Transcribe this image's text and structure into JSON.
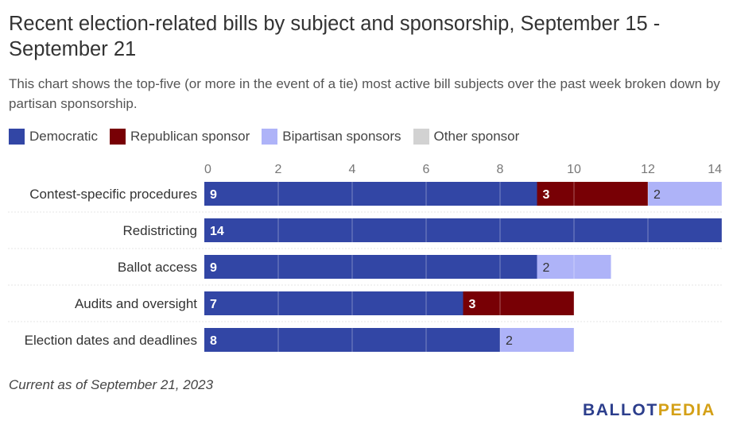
{
  "title": "Recent election-related bills by subject and sponsorship, September 15 - September 21",
  "subtitle": "This chart shows the top-five (or more in the event of a tie) most active bill subjects over the past week broken down by partisan sponsorship.",
  "footnote": "Current as of September 21, 2023",
  "logo": {
    "part1": "BALLOT",
    "part2": "PEDIA"
  },
  "chart_data": {
    "type": "bar",
    "orientation": "horizontal",
    "stacked": true,
    "categories": [
      "Contest-specific procedures",
      "Redistricting",
      "Ballot access",
      "Audits and oversight",
      "Election dates and deadlines"
    ],
    "series": [
      {
        "name": "Democratic",
        "color": "#3246a5",
        "values": [
          9,
          14,
          9,
          7,
          8
        ]
      },
      {
        "name": "Republican sponsor",
        "color": "#780005",
        "values": [
          3,
          0,
          0,
          3,
          0
        ]
      },
      {
        "name": "Bipartisan sponsors",
        "color": "#aeb3f8",
        "values": [
          2,
          0,
          2,
          0,
          2
        ]
      },
      {
        "name": "Other sponsor",
        "color": "#d2d2d2",
        "values": [
          0,
          0,
          0,
          0,
          0
        ]
      }
    ],
    "xlim": [
      0,
      14
    ],
    "xticks": [
      0,
      2,
      4,
      6,
      8,
      10,
      12,
      14
    ],
    "grid": true,
    "legend": "top-left"
  }
}
